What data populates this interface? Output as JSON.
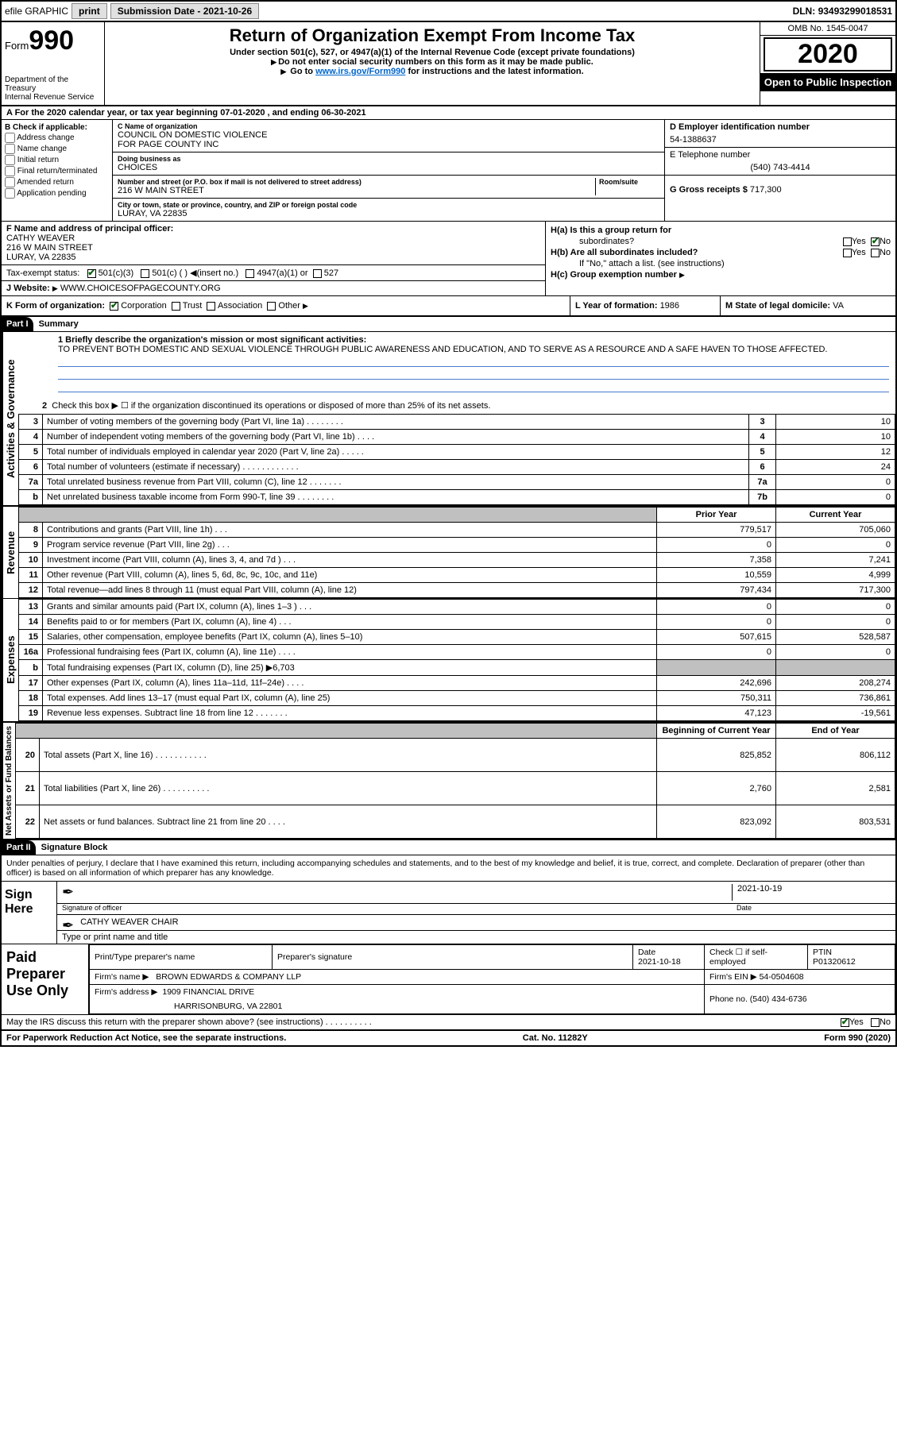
{
  "topbar": {
    "efile": "efile GRAPHIC",
    "print": "print",
    "submission_label": "Submission Date - ",
    "submission_date": "2021-10-26",
    "dln_label": "DLN: ",
    "dln": "93493299018531"
  },
  "header": {
    "form_word": "Form",
    "form_num": "990",
    "dept1": "Department of the Treasury",
    "dept2": "Internal Revenue Service",
    "title": "Return of Organization Exempt From Income Tax",
    "sub1": "Under section 501(c), 527, or 4947(a)(1) of the Internal Revenue Code (except private foundations)",
    "sub2": "Do not enter social security numbers on this form as it may be made public.",
    "sub3_pre": "Go to ",
    "sub3_link": "www.irs.gov/Form990",
    "sub3_post": " for instructions and the latest information.",
    "omb": "OMB No. 1545-0047",
    "year": "2020",
    "open": "Open to Public Inspection"
  },
  "row_a": {
    "text": "A  For the 2020 calendar year, or tax year beginning 07-01-2020     , and ending 06-30-2021"
  },
  "col_b": {
    "hdr": "B Check if applicable:",
    "opts": [
      "Address change",
      "Name change",
      "Initial return",
      "Final return/terminated",
      "Amended return",
      "Application pending"
    ]
  },
  "col_c": {
    "name_lbl": "C Name of organization",
    "name1": "COUNCIL ON DOMESTIC VIOLENCE",
    "name2": "FOR PAGE COUNTY INC",
    "dba_lbl": "Doing business as",
    "dba": "CHOICES",
    "addr_lbl": "Number and street (or P.O. box if mail is not delivered to street address)",
    "room_lbl": "Room/suite",
    "addr": "216 W MAIN STREET",
    "city_lbl": "City or town, state or province, country, and ZIP or foreign postal code",
    "city": "LURAY, VA  22835"
  },
  "col_d": {
    "ein_lbl": "D Employer identification number",
    "ein": "54-1388637",
    "tel_lbl": "E Telephone number",
    "tel": "(540) 743-4414",
    "gross_lbl": "G Gross receipts $ ",
    "gross": "717,300"
  },
  "block_f": {
    "lbl": "F  Name and address of principal officer:",
    "name": "CATHY WEAVER",
    "addr1": "216 W MAIN STREET",
    "addr2": "LURAY, VA  22835",
    "tax_lbl": "Tax-exempt status:",
    "tax_501c3": "501(c)(3)",
    "tax_501c": "501(c) (  )",
    "tax_insert": "(insert no.)",
    "tax_4947": "4947(a)(1) or",
    "tax_527": "527",
    "web_lbl": "J  Website: ",
    "web": "WWW.CHOICESOFPAGECOUNTY.ORG"
  },
  "block_h": {
    "h_a1": "H(a)  Is this a group return for",
    "h_a2": "subordinates?",
    "h_b": "H(b)  Are all subordinates included?",
    "h_ifno": "If \"No,\" attach a list. (see instructions)",
    "h_c": "H(c)  Group exemption number ",
    "yes": "Yes",
    "no": "No"
  },
  "row_k": {
    "k": "K Form of organization:",
    "corp": "Corporation",
    "trust": "Trust",
    "assoc": "Association",
    "other": "Other",
    "l": "L Year of formation: ",
    "l_val": "1986",
    "m": "M State of legal domicile: ",
    "m_val": "VA"
  },
  "part1": {
    "hdr": "Part I",
    "title": "Summary",
    "q1": "1  Briefly describe the organization's mission or most significant activities:",
    "mission": "TO PREVENT BOTH DOMESTIC AND SEXUAL VIOLENCE THROUGH PUBLIC AWARENESS AND EDUCATION, AND TO SERVE AS A RESOURCE AND A SAFE HAVEN TO THOSE AFFECTED.",
    "q2": "Check this box ▶ ☐  if the organization discontinued its operations or disposed of more than 25% of its net assets.",
    "side_act": "Activities & Governance",
    "side_rev": "Revenue",
    "side_exp": "Expenses",
    "side_net": "Net Assets or Fund Balances",
    "col_prior": "Prior Year",
    "col_curr": "Current Year",
    "col_beg": "Beginning of Current Year",
    "col_end": "End of Year",
    "rows_act": [
      {
        "n": "3",
        "d": "Number of voting members of the governing body (Part VI, line 1a)   .    .    .    .    .    .    .    .",
        "ln": "3",
        "v": "10"
      },
      {
        "n": "4",
        "d": "Number of independent voting members of the governing body (Part VI, line 1b)   .    .    .    .",
        "ln": "4",
        "v": "10"
      },
      {
        "n": "5",
        "d": "Total number of individuals employed in calendar year 2020 (Part V, line 2a)   .    .    .    .    .",
        "ln": "5",
        "v": "12"
      },
      {
        "n": "6",
        "d": "Total number of volunteers (estimate if necessary)    .    .    .    .    .    .    .    .    .    .    .    .",
        "ln": "6",
        "v": "24"
      },
      {
        "n": "7a",
        "d": "Total unrelated business revenue from Part VIII, column (C), line 12   .    .    .    .    .    .    .",
        "ln": "7a",
        "v": "0"
      },
      {
        "n": "b",
        "d": "Net unrelated business taxable income from Form 990-T, line 39    .    .    .    .    .    .    .    .",
        "ln": "7b",
        "v": "0"
      }
    ],
    "rows_rev": [
      {
        "n": "8",
        "d": "Contributions and grants (Part VIII, line 1h)   .    .    .",
        "p": "779,517",
        "c": "705,060"
      },
      {
        "n": "9",
        "d": "Program service revenue (Part VIII, line 2g)    .    .    .",
        "p": "0",
        "c": "0"
      },
      {
        "n": "10",
        "d": "Investment income (Part VIII, column (A), lines 3, 4, and 7d )    .    .    .",
        "p": "7,358",
        "c": "7,241"
      },
      {
        "n": "11",
        "d": "Other revenue (Part VIII, column (A), lines 5, 6d, 8c, 9c, 10c, and 11e)",
        "p": "10,559",
        "c": "4,999"
      },
      {
        "n": "12",
        "d": "Total revenue—add lines 8 through 11 (must equal Part VIII, column (A), line 12)",
        "p": "797,434",
        "c": "717,300"
      }
    ],
    "rows_exp": [
      {
        "n": "13",
        "d": "Grants and similar amounts paid (Part IX, column (A), lines 1–3 )   .    .    .",
        "p": "0",
        "c": "0"
      },
      {
        "n": "14",
        "d": "Benefits paid to or for members (Part IX, column (A), line 4)   .    .    .",
        "p": "0",
        "c": "0"
      },
      {
        "n": "15",
        "d": "Salaries, other compensation, employee benefits (Part IX, column (A), lines 5–10)",
        "p": "507,615",
        "c": "528,587"
      },
      {
        "n": "16a",
        "d": "Professional fundraising fees (Part IX, column (A), line 11e)   .    .    .    .",
        "p": "0",
        "c": "0"
      },
      {
        "n": "b",
        "d": "Total fundraising expenses (Part IX, column (D), line 25) ▶6,703",
        "shade": true
      },
      {
        "n": "17",
        "d": "Other expenses (Part IX, column (A), lines 11a–11d, 11f–24e)   .    .    .    .",
        "p": "242,696",
        "c": "208,274"
      },
      {
        "n": "18",
        "d": "Total expenses. Add lines 13–17 (must equal Part IX, column (A), line 25)",
        "p": "750,311",
        "c": "736,861"
      },
      {
        "n": "19",
        "d": "Revenue less expenses. Subtract line 18 from line 12   .    .    .    .    .    .    .",
        "p": "47,123",
        "c": "-19,561"
      }
    ],
    "rows_net": [
      {
        "n": "20",
        "d": "Total assets (Part X, line 16)   .    .    .    .    .    .    .    .    .    .    .",
        "p": "825,852",
        "c": "806,112"
      },
      {
        "n": "21",
        "d": "Total liabilities (Part X, line 26)   .    .    .    .    .    .    .    .    .    .",
        "p": "2,760",
        "c": "2,581"
      },
      {
        "n": "22",
        "d": "Net assets or fund balances. Subtract line 21 from line 20   .    .    .    .",
        "p": "823,092",
        "c": "803,531"
      }
    ]
  },
  "part2": {
    "hdr": "Part II",
    "title": "Signature Block",
    "decl": "Under penalties of perjury, I declare that I have examined this return, including accompanying schedules and statements, and to the best of my knowledge and belief, it is true, correct, and complete. Declaration of preparer (other than officer) is based on all information of which preparer has any knowledge.",
    "sign_here": "Sign Here",
    "sig_officer": "Signature of officer",
    "date": "Date",
    "date_val": "2021-10-19",
    "officer_name": "CATHY WEAVER  CHAIR",
    "type_name": "Type or print name and title",
    "paid": "Paid Preparer Use Only",
    "prep_name_lbl": "Print/Type preparer's name",
    "prep_sig_lbl": "Preparer's signature",
    "prep_date_lbl": "Date",
    "prep_date": "2021-10-18",
    "check_self": "Check ☐  if self-employed",
    "ptin_lbl": "PTIN",
    "ptin": "P01320612",
    "firm_name_lbl": "Firm's name     ▶",
    "firm_name": "BROWN EDWARDS & COMPANY LLP",
    "firm_ein_lbl": "Firm's EIN ▶ ",
    "firm_ein": "54-0504608",
    "firm_addr_lbl": "Firm's address ▶",
    "firm_addr1": "1909 FINANCIAL DRIVE",
    "firm_addr2": "HARRISONBURG, VA  22801",
    "phone_lbl": "Phone no. ",
    "phone": "(540) 434-6736",
    "discuss": "May the IRS discuss this return with the preparer shown above? (see instructions)    .    .    .    .    .    .    .    .    .    .",
    "yes": "Yes",
    "no": "No"
  },
  "footer": {
    "left": "For Paperwork Reduction Act Notice, see the separate instructions.",
    "mid": "Cat. No. 11282Y",
    "right": "Form 990 (2020)"
  },
  "colors": {
    "link": "#0066cc",
    "line_blue": "#4a7bd0",
    "shade": "#c0c0c0",
    "check_green": "#006000"
  }
}
